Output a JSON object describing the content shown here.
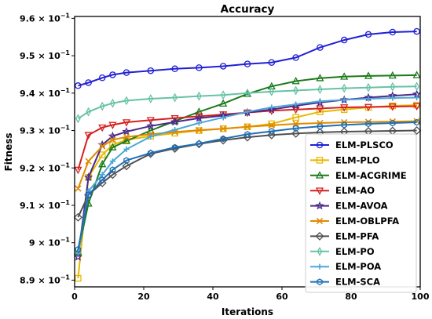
{
  "chart_data": {
    "type": "line",
    "title": "Accuracy",
    "xlabel": "Iterations",
    "ylabel": "Fitness",
    "xlim": [
      0,
      100
    ],
    "ylim": [
      0.8882,
      0.9605
    ],
    "x_ticks": [
      0,
      20,
      40,
      60,
      80,
      100
    ],
    "x_tick_labels": [
      "0",
      "20",
      "40",
      "60",
      "80",
      "100"
    ],
    "y_ticks": [
      0.89,
      0.9,
      0.91,
      0.92,
      0.93,
      0.94,
      0.95,
      0.96
    ],
    "y_tick_mantissas": [
      "8.9",
      "9",
      "9.1",
      "9.2",
      "9.3",
      "9.4",
      "9.5",
      "9.6"
    ],
    "y_tick_suffix": "× 10",
    "y_tick_exponent": "−1",
    "grid": false,
    "legend_position": "center-right",
    "x": [
      1,
      4,
      8,
      11,
      15,
      22,
      29,
      36,
      43,
      50,
      57,
      64,
      71,
      78,
      85,
      92,
      99
    ],
    "series": [
      {
        "name": "ELM-PLSCO",
        "color": "#1f1fd6",
        "marker": "circle",
        "values": [
          0.942,
          0.9428,
          0.9441,
          0.9449,
          0.9455,
          0.946,
          0.9465,
          0.9468,
          0.9472,
          0.9478,
          0.9482,
          0.9495,
          0.9522,
          0.9542,
          0.9557,
          0.9563,
          0.9565
        ]
      },
      {
        "name": "ELM-PLO",
        "color": "#e6b800",
        "marker": "square",
        "values": [
          0.8905,
          0.9175,
          0.9235,
          0.9262,
          0.9275,
          0.9285,
          0.9293,
          0.93,
          0.9305,
          0.931,
          0.9318,
          0.9335,
          0.935,
          0.9356,
          0.9362,
          0.9366,
          0.9368
        ]
      },
      {
        "name": "ELM-ACGRIME",
        "color": "#1a7a1a",
        "marker": "triangle",
        "values": [
          0.8975,
          0.9105,
          0.921,
          0.9255,
          0.9272,
          0.93,
          0.9325,
          0.935,
          0.9372,
          0.9398,
          0.9418,
          0.9432,
          0.944,
          0.9444,
          0.9446,
          0.9447,
          0.9448
        ]
      },
      {
        "name": "ELM-AO",
        "color": "#d62020",
        "marker": "triangle-down",
        "values": [
          0.9195,
          0.9288,
          0.9308,
          0.9315,
          0.9322,
          0.9328,
          0.9333,
          0.9338,
          0.9343,
          0.9348,
          0.9353,
          0.9356,
          0.9359,
          0.9362,
          0.9363,
          0.9364,
          0.9365
        ]
      },
      {
        "name": "ELM-AVOA",
        "color": "#4b2a8a",
        "marker": "star",
        "values": [
          0.8962,
          0.9175,
          0.9262,
          0.9285,
          0.9297,
          0.9312,
          0.9323,
          0.9333,
          0.934,
          0.9348,
          0.9356,
          0.9366,
          0.9375,
          0.9382,
          0.9388,
          0.9393,
          0.9397
        ]
      },
      {
        "name": "ELM-OBLPFA",
        "color": "#e08a00",
        "marker": "x",
        "values": [
          0.9145,
          0.9218,
          0.9258,
          0.9275,
          0.9283,
          0.929,
          0.9296,
          0.9301,
          0.9305,
          0.931,
          0.9314,
          0.9318,
          0.932,
          0.9322,
          0.9323,
          0.9324,
          0.9325
        ]
      },
      {
        "name": "ELM-PFA",
        "color": "#505050",
        "marker": "diamond",
        "values": [
          0.9068,
          0.9128,
          0.916,
          0.9182,
          0.9205,
          0.9238,
          0.9252,
          0.9264,
          0.9274,
          0.9282,
          0.9288,
          0.9292,
          0.9295,
          0.9297,
          0.9298,
          0.9299,
          0.93
        ]
      },
      {
        "name": "ELM-PO",
        "color": "#66c2a5",
        "marker": "thin-diamond",
        "values": [
          0.9332,
          0.935,
          0.9365,
          0.9373,
          0.938,
          0.9385,
          0.9388,
          0.9392,
          0.9395,
          0.94,
          0.9404,
          0.9407,
          0.941,
          0.9413,
          0.9415,
          0.9417,
          0.9418
        ]
      },
      {
        "name": "ELM-POA",
        "color": "#4ca6d8",
        "marker": "plus",
        "values": [
          0.8972,
          0.9138,
          0.9182,
          0.9218,
          0.925,
          0.9284,
          0.9302,
          0.932,
          0.9335,
          0.935,
          0.9362,
          0.937,
          0.9378,
          0.9382,
          0.9385,
          0.9387,
          0.9388
        ]
      },
      {
        "name": "ELM-SCA",
        "color": "#1f6fb4",
        "marker": "hexagon",
        "values": [
          0.8982,
          0.9128,
          0.9168,
          0.9195,
          0.922,
          0.924,
          0.9255,
          0.9265,
          0.9278,
          0.929,
          0.9298,
          0.9306,
          0.9311,
          0.9315,
          0.9318,
          0.932,
          0.9322
        ]
      }
    ]
  }
}
